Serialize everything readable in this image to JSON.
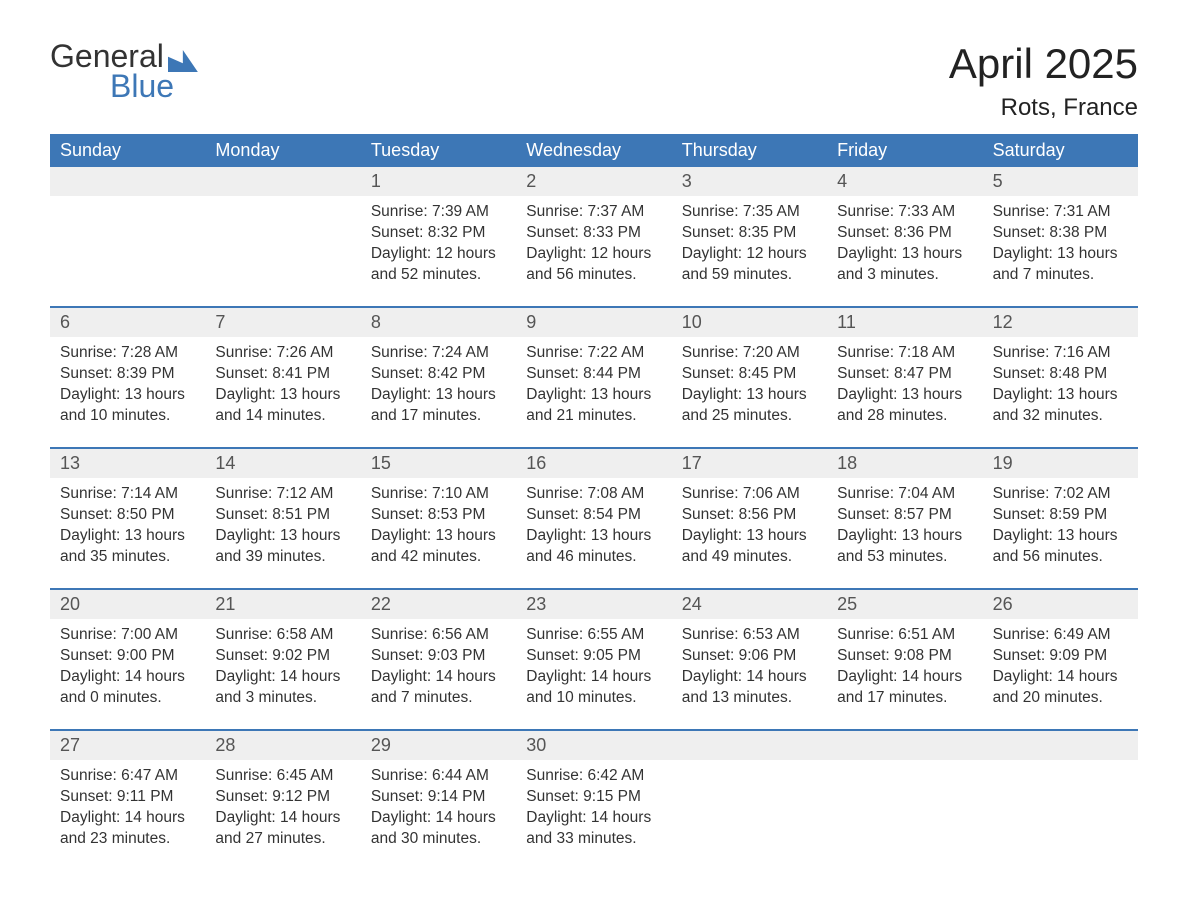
{
  "logo": {
    "word1": "General",
    "word2": "Blue"
  },
  "title": "April 2025",
  "subtitle": "Rots, France",
  "colors": {
    "header_bg": "#3d77b6",
    "header_text": "#ffffff",
    "daynum_bg": "#efefef",
    "text": "#333333",
    "logo_blue": "#3d77b6",
    "page_bg": "#ffffff"
  },
  "layout": {
    "columns": 7,
    "title_fontsize": 42,
    "subtitle_fontsize": 24,
    "header_fontsize": 18,
    "body_fontsize": 15.5
  },
  "dayHeaders": [
    "Sunday",
    "Monday",
    "Tuesday",
    "Wednesday",
    "Thursday",
    "Friday",
    "Saturday"
  ],
  "weeks": [
    [
      {
        "num": "",
        "lines": []
      },
      {
        "num": "",
        "lines": []
      },
      {
        "num": "1",
        "lines": [
          "Sunrise: 7:39 AM",
          "Sunset: 8:32 PM",
          "Daylight: 12 hours",
          "and 52 minutes."
        ]
      },
      {
        "num": "2",
        "lines": [
          "Sunrise: 7:37 AM",
          "Sunset: 8:33 PM",
          "Daylight: 12 hours",
          "and 56 minutes."
        ]
      },
      {
        "num": "3",
        "lines": [
          "Sunrise: 7:35 AM",
          "Sunset: 8:35 PM",
          "Daylight: 12 hours",
          "and 59 minutes."
        ]
      },
      {
        "num": "4",
        "lines": [
          "Sunrise: 7:33 AM",
          "Sunset: 8:36 PM",
          "Daylight: 13 hours",
          "and 3 minutes."
        ]
      },
      {
        "num": "5",
        "lines": [
          "Sunrise: 7:31 AM",
          "Sunset: 8:38 PM",
          "Daylight: 13 hours",
          "and 7 minutes."
        ]
      }
    ],
    [
      {
        "num": "6",
        "lines": [
          "Sunrise: 7:28 AM",
          "Sunset: 8:39 PM",
          "Daylight: 13 hours",
          "and 10 minutes."
        ]
      },
      {
        "num": "7",
        "lines": [
          "Sunrise: 7:26 AM",
          "Sunset: 8:41 PM",
          "Daylight: 13 hours",
          "and 14 minutes."
        ]
      },
      {
        "num": "8",
        "lines": [
          "Sunrise: 7:24 AM",
          "Sunset: 8:42 PM",
          "Daylight: 13 hours",
          "and 17 minutes."
        ]
      },
      {
        "num": "9",
        "lines": [
          "Sunrise: 7:22 AM",
          "Sunset: 8:44 PM",
          "Daylight: 13 hours",
          "and 21 minutes."
        ]
      },
      {
        "num": "10",
        "lines": [
          "Sunrise: 7:20 AM",
          "Sunset: 8:45 PM",
          "Daylight: 13 hours",
          "and 25 minutes."
        ]
      },
      {
        "num": "11",
        "lines": [
          "Sunrise: 7:18 AM",
          "Sunset: 8:47 PM",
          "Daylight: 13 hours",
          "and 28 minutes."
        ]
      },
      {
        "num": "12",
        "lines": [
          "Sunrise: 7:16 AM",
          "Sunset: 8:48 PM",
          "Daylight: 13 hours",
          "and 32 minutes."
        ]
      }
    ],
    [
      {
        "num": "13",
        "lines": [
          "Sunrise: 7:14 AM",
          "Sunset: 8:50 PM",
          "Daylight: 13 hours",
          "and 35 minutes."
        ]
      },
      {
        "num": "14",
        "lines": [
          "Sunrise: 7:12 AM",
          "Sunset: 8:51 PM",
          "Daylight: 13 hours",
          "and 39 minutes."
        ]
      },
      {
        "num": "15",
        "lines": [
          "Sunrise: 7:10 AM",
          "Sunset: 8:53 PM",
          "Daylight: 13 hours",
          "and 42 minutes."
        ]
      },
      {
        "num": "16",
        "lines": [
          "Sunrise: 7:08 AM",
          "Sunset: 8:54 PM",
          "Daylight: 13 hours",
          "and 46 minutes."
        ]
      },
      {
        "num": "17",
        "lines": [
          "Sunrise: 7:06 AM",
          "Sunset: 8:56 PM",
          "Daylight: 13 hours",
          "and 49 minutes."
        ]
      },
      {
        "num": "18",
        "lines": [
          "Sunrise: 7:04 AM",
          "Sunset: 8:57 PM",
          "Daylight: 13 hours",
          "and 53 minutes."
        ]
      },
      {
        "num": "19",
        "lines": [
          "Sunrise: 7:02 AM",
          "Sunset: 8:59 PM",
          "Daylight: 13 hours",
          "and 56 minutes."
        ]
      }
    ],
    [
      {
        "num": "20",
        "lines": [
          "Sunrise: 7:00 AM",
          "Sunset: 9:00 PM",
          "Daylight: 14 hours",
          "and 0 minutes."
        ]
      },
      {
        "num": "21",
        "lines": [
          "Sunrise: 6:58 AM",
          "Sunset: 9:02 PM",
          "Daylight: 14 hours",
          "and 3 minutes."
        ]
      },
      {
        "num": "22",
        "lines": [
          "Sunrise: 6:56 AM",
          "Sunset: 9:03 PM",
          "Daylight: 14 hours",
          "and 7 minutes."
        ]
      },
      {
        "num": "23",
        "lines": [
          "Sunrise: 6:55 AM",
          "Sunset: 9:05 PM",
          "Daylight: 14 hours",
          "and 10 minutes."
        ]
      },
      {
        "num": "24",
        "lines": [
          "Sunrise: 6:53 AM",
          "Sunset: 9:06 PM",
          "Daylight: 14 hours",
          "and 13 minutes."
        ]
      },
      {
        "num": "25",
        "lines": [
          "Sunrise: 6:51 AM",
          "Sunset: 9:08 PM",
          "Daylight: 14 hours",
          "and 17 minutes."
        ]
      },
      {
        "num": "26",
        "lines": [
          "Sunrise: 6:49 AM",
          "Sunset: 9:09 PM",
          "Daylight: 14 hours",
          "and 20 minutes."
        ]
      }
    ],
    [
      {
        "num": "27",
        "lines": [
          "Sunrise: 6:47 AM",
          "Sunset: 9:11 PM",
          "Daylight: 14 hours",
          "and 23 minutes."
        ]
      },
      {
        "num": "28",
        "lines": [
          "Sunrise: 6:45 AM",
          "Sunset: 9:12 PM",
          "Daylight: 14 hours",
          "and 27 minutes."
        ]
      },
      {
        "num": "29",
        "lines": [
          "Sunrise: 6:44 AM",
          "Sunset: 9:14 PM",
          "Daylight: 14 hours",
          "and 30 minutes."
        ]
      },
      {
        "num": "30",
        "lines": [
          "Sunrise: 6:42 AM",
          "Sunset: 9:15 PM",
          "Daylight: 14 hours",
          "and 33 minutes."
        ]
      },
      {
        "num": "",
        "lines": []
      },
      {
        "num": "",
        "lines": []
      },
      {
        "num": "",
        "lines": []
      }
    ]
  ]
}
